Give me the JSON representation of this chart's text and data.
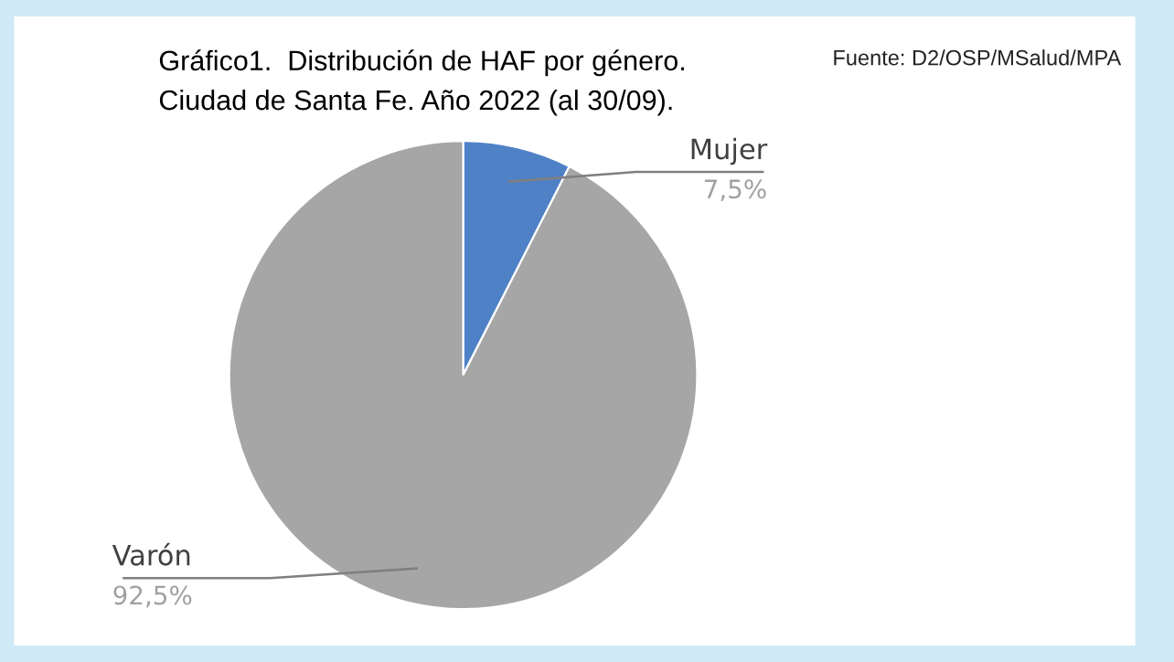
{
  "chart_data": {
    "type": "pie",
    "title": "Gráfico1.  Distribución de HAF por género.",
    "subtitle": "Ciudad de Santa Fe. Año 2022 (al 30/09).",
    "categories": [
      "Mujer",
      "Varón"
    ],
    "values": [
      7.5,
      92.5
    ],
    "colors": [
      "#4f81c7",
      "#a6a6a6"
    ],
    "value_labels": [
      "7,5%",
      "92,5%"
    ],
    "annotations": [
      "Fuente: D2/OSP/MSalud/MPA"
    ],
    "legend": false
  }
}
